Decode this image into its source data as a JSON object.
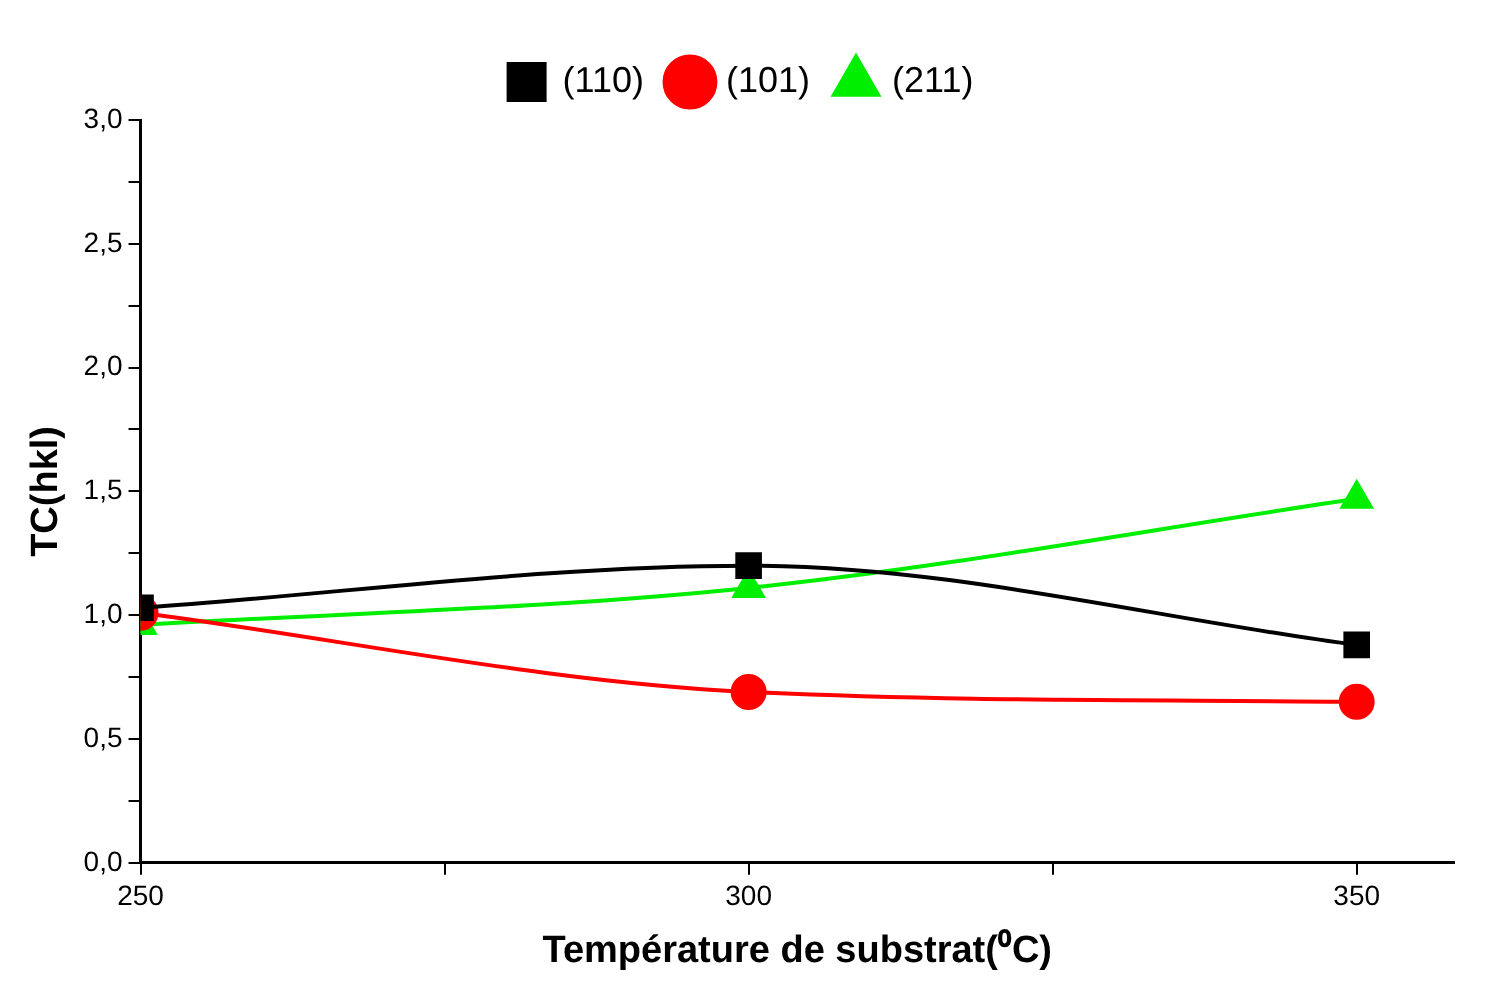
{
  "chart_data": {
    "type": "line",
    "xlabel": "Température de substrat(⁰C)",
    "ylabel": "TC(hkl)",
    "x": [
      250,
      300,
      350
    ],
    "series": [
      {
        "name": "(110)",
        "color": "#000000",
        "marker": "square",
        "values": [
          1.03,
          1.2,
          0.88
        ]
      },
      {
        "name": "(101)",
        "color": "#ff0000",
        "marker": "circle",
        "values": [
          1.01,
          0.69,
          0.65
        ]
      },
      {
        "name": "(211)",
        "color": "#00ee00",
        "marker": "triangle",
        "values": [
          0.96,
          1.11,
          1.47
        ]
      }
    ],
    "xlim": [
      250,
      358
    ],
    "xticks": [
      250,
      {
        "value": 275,
        "label": null
      },
      300,
      {
        "value": 325,
        "label": null
      },
      350
    ],
    "ylim": [
      0,
      3
    ],
    "yticks": [
      {
        "value": 0,
        "label": "0,0"
      },
      {
        "value": 0.25,
        "label": null
      },
      {
        "value": 0.5,
        "label": "0,5"
      },
      {
        "value": 0.75,
        "label": null
      },
      {
        "value": 1,
        "label": "1,0"
      },
      {
        "value": 1.25,
        "label": null
      },
      {
        "value": 1.5,
        "label": "1,5"
      },
      {
        "value": 1.75,
        "label": null
      },
      {
        "value": 2,
        "label": "2,0"
      },
      {
        "value": 2.25,
        "label": null
      },
      {
        "value": 2.5,
        "label": "2,5"
      },
      {
        "value": 2.75,
        "label": null
      },
      {
        "value": 3,
        "label": "3,0"
      }
    ],
    "grid": false,
    "legend": "top",
    "line_style": "solid"
  }
}
